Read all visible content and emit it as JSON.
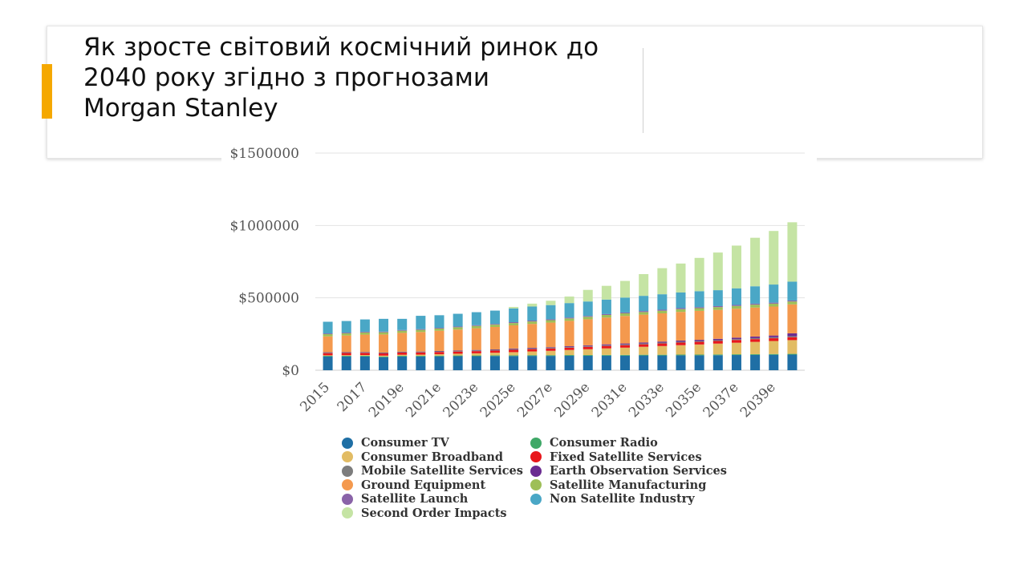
{
  "slide": {
    "title_lines": [
      "Як зросте світовий космічний ринок до",
      "2040 року згідно з прогнозами",
      "Morgan Stanley"
    ],
    "accent_color": "#f5a800"
  },
  "chart_data": {
    "type": "bar",
    "stacked": true,
    "title": "",
    "xlabel": "",
    "ylabel": "",
    "ylim": [
      0,
      1500000
    ],
    "yticks": [
      0,
      500000,
      1000000,
      1500000
    ],
    "ytick_labels": [
      "$0",
      "$500000",
      "$1000000",
      "$1500000"
    ],
    "grid": true,
    "legend_position": "bottom",
    "categories": [
      "2015",
      "2016",
      "2017",
      "2018",
      "2019e",
      "2020e",
      "2021e",
      "2022e",
      "2023e",
      "2024e",
      "2025e",
      "2026e",
      "2027e",
      "2028e",
      "2029e",
      "2030e",
      "2031e",
      "2032e",
      "2033e",
      "2034e",
      "2035e",
      "2036e",
      "2037e",
      "2038e",
      "2039e",
      "2040e"
    ],
    "x_tick_labels_shown": [
      "2015",
      "2017",
      "2019e",
      "2021e",
      "2023e",
      "2025e",
      "2027e",
      "2029e",
      "2031e",
      "2033e",
      "2035e",
      "2037e",
      "2039e"
    ],
    "series": [
      {
        "name": "Consumer TV",
        "color": "#1f6fa5",
        "values": [
          95000,
          95000,
          95000,
          90000,
          95000,
          95000,
          96000,
          97000,
          97000,
          98000,
          98000,
          99000,
          99000,
          100000,
          100000,
          101000,
          101000,
          102000,
          102000,
          103000,
          103000,
          104000,
          105000,
          106000,
          107000,
          108000
        ]
      },
      {
        "name": "Consumer Radio",
        "color": "#3fa867",
        "values": [
          5000,
          5000,
          5000,
          5000,
          5000,
          5000,
          5000,
          5000,
          5000,
          5000,
          5000,
          5000,
          5000,
          5000,
          5000,
          5000,
          5000,
          5000,
          5000,
          5000,
          5000,
          5000,
          5000,
          5000,
          5000,
          5000
        ]
      },
      {
        "name": "Consumer Broadband",
        "color": "#e2bc64",
        "values": [
          3000,
          4000,
          5000,
          6000,
          7000,
          8000,
          10000,
          12000,
          15000,
          18000,
          22000,
          26000,
          30000,
          35000,
          40000,
          45000,
          50000,
          55000,
          60000,
          65000,
          70000,
          75000,
          80000,
          85000,
          90000,
          95000
        ]
      },
      {
        "name": "Fixed Satellite Services",
        "color": "#e8171c",
        "values": [
          15000,
          15000,
          15000,
          15000,
          15000,
          15000,
          15000,
          15000,
          15000,
          15000,
          16000,
          16000,
          16000,
          16000,
          17000,
          17000,
          17000,
          17000,
          18000,
          18000,
          18000,
          18000,
          19000,
          19000,
          19000,
          20000
        ]
      },
      {
        "name": "Mobile Satellite Services",
        "color": "#7d7d7d",
        "values": [
          4000,
          4000,
          4000,
          4000,
          4000,
          4000,
          4000,
          4000,
          5000,
          5000,
          5000,
          5000,
          5000,
          5000,
          5000,
          5000,
          6000,
          6000,
          6000,
          6000,
          6000,
          6000,
          6000,
          7000,
          7000,
          7000
        ]
      },
      {
        "name": "Earth Observation Services",
        "color": "#6b2c91",
        "values": [
          2000,
          2000,
          2000,
          2000,
          2000,
          2000,
          3000,
          3000,
          3000,
          3000,
          4000,
          4000,
          4000,
          5000,
          5000,
          6000,
          6000,
          7000,
          7000,
          8000,
          8000,
          9000,
          10000,
          11000,
          12000,
          20000
        ]
      },
      {
        "name": "Ground Equipment",
        "color": "#f4994e",
        "values": [
          110000,
          115000,
          120000,
          125000,
          130000,
          135000,
          140000,
          145000,
          150000,
          155000,
          160000,
          165000,
          170000,
          175000,
          180000,
          185000,
          190000,
          192000,
          195000,
          198000,
          200000,
          200000,
          200000,
          200000,
          200000,
          200000
        ]
      },
      {
        "name": "Satellite Manufacturing",
        "color": "#9ebf58",
        "values": [
          15000,
          15000,
          15000,
          15000,
          15000,
          15000,
          15000,
          16000,
          16000,
          16000,
          16000,
          17000,
          17000,
          17000,
          17000,
          18000,
          18000,
          18000,
          18000,
          19000,
          19000,
          19000,
          19000,
          20000,
          20000,
          20000
        ]
      },
      {
        "name": "Satellite Launch",
        "color": "#8a63a8",
        "values": [
          5000,
          5000,
          5000,
          5000,
          5000,
          5000,
          5000,
          5000,
          5000,
          5000,
          6000,
          6000,
          6000,
          6000,
          6000,
          6000,
          6000,
          7000,
          7000,
          7000,
          7000,
          7000,
          7000,
          7000,
          7000,
          7000
        ]
      },
      {
        "name": "Non Satellite Industry",
        "color": "#4aa7c6",
        "values": [
          81000,
          80000,
          85000,
          88000,
          77000,
          92000,
          87000,
          88000,
          90000,
          92000,
          95000,
          97000,
          98000,
          100000,
          100000,
          100000,
          103000,
          105000,
          107000,
          108000,
          110000,
          110000,
          115000,
          120000,
          125000,
          130000
        ]
      },
      {
        "name": "Second Order Impacts",
        "color": "#c5e4a4",
        "values": [
          0,
          0,
          0,
          0,
          0,
          0,
          0,
          0,
          0,
          0,
          10000,
          20000,
          30000,
          45000,
          80000,
          95000,
          115000,
          150000,
          180000,
          200000,
          230000,
          260000,
          295000,
          335000,
          370000,
          410000
        ]
      }
    ]
  },
  "legend": {
    "items": [
      {
        "label": "Consumer TV",
        "color": "#1f6fa5"
      },
      {
        "label": "Consumer Radio",
        "color": "#3fa867"
      },
      {
        "label": "Consumer Broadband",
        "color": "#e2bc64"
      },
      {
        "label": "Fixed Satellite Services",
        "color": "#e8171c"
      },
      {
        "label": "Mobile Satellite Services",
        "color": "#7d7d7d"
      },
      {
        "label": "Earth Observation Services",
        "color": "#6b2c91"
      },
      {
        "label": "Ground Equipment",
        "color": "#f4994e"
      },
      {
        "label": "Satellite Manufacturing",
        "color": "#9ebf58"
      },
      {
        "label": "Satellite Launch",
        "color": "#8a63a8"
      },
      {
        "label": "Non Satellite Industry",
        "color": "#4aa7c6"
      },
      {
        "label": "Second Order Impacts",
        "color": "#c5e4a4"
      }
    ]
  }
}
